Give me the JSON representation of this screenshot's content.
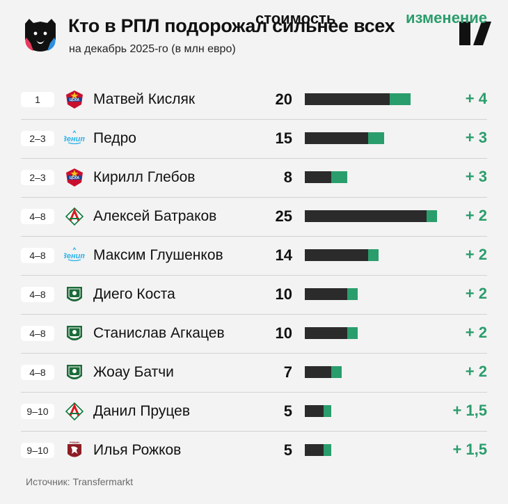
{
  "header": {
    "title": "Кто в РПЛ подорожал сильнее всех",
    "subtitle": "на декабрь 2025-го (в млн евро)"
  },
  "columns": {
    "value_label": "стоимость",
    "change_label": "изменение"
  },
  "footer": {
    "source": "Источник: Transfermarkt"
  },
  "colors": {
    "accent_green": "#2a9d6c",
    "bar_dark": "#2b2b2b",
    "background": "#f3f3f3",
    "cska_red": "#c8102e",
    "cska_blue": "#1f3f8f",
    "zenit_blue": "#2db3e8",
    "lokomotiv_red": "#d71920",
    "lokomotiv_green": "#0a7a3b",
    "krasnodar_green": "#1d6b3a",
    "rubin_maroon": "#8c1d24"
  },
  "chart_data": {
    "type": "bar",
    "title": "Кто в РПЛ подорожал сильнее всех",
    "subtitle": "на декабрь 2025-го (в млн евро)",
    "xlim": [
      0,
      25
    ],
    "series": [
      {
        "name": "стоимость",
        "values": [
          20,
          15,
          8,
          25,
          14,
          10,
          10,
          7,
          5,
          5
        ]
      },
      {
        "name": "изменение",
        "values": [
          4,
          3,
          3,
          2,
          2,
          2,
          2,
          2,
          1.5,
          1.5
        ]
      }
    ],
    "rows": [
      {
        "rank": "1",
        "club_icon": "cska-icon",
        "player": "Матвей Кисляк",
        "value": 20,
        "value_label": "20",
        "change": 4,
        "change_label": "+ 4"
      },
      {
        "rank": "2–3",
        "club_icon": "zenit-icon",
        "player": "Педро",
        "value": 15,
        "value_label": "15",
        "change": 3,
        "change_label": "+ 3"
      },
      {
        "rank": "2–3",
        "club_icon": "cska-icon",
        "player": "Кирилл Глебов",
        "value": 8,
        "value_label": "8",
        "change": 3,
        "change_label": "+ 3"
      },
      {
        "rank": "4–8",
        "club_icon": "lokomotiv-icon",
        "player": "Алексей Батраков",
        "value": 25,
        "value_label": "25",
        "change": 2,
        "change_label": "+ 2"
      },
      {
        "rank": "4–8",
        "club_icon": "zenit-icon",
        "player": "Максим Глушенков",
        "value": 14,
        "value_label": "14",
        "change": 2,
        "change_label": "+ 2"
      },
      {
        "rank": "4–8",
        "club_icon": "krasnodar-icon",
        "player": "Диего Коста",
        "value": 10,
        "value_label": "10",
        "change": 2,
        "change_label": "+ 2"
      },
      {
        "rank": "4–8",
        "club_icon": "krasnodar-icon",
        "player": "Станислав Агкацев",
        "value": 10,
        "value_label": "10",
        "change": 2,
        "change_label": "+ 2"
      },
      {
        "rank": "4–8",
        "club_icon": "krasnodar-icon",
        "player": "Жоау Батчи",
        "value": 7,
        "value_label": "7",
        "change": 2,
        "change_label": "+ 2"
      },
      {
        "rank": "9–10",
        "club_icon": "lokomotiv-icon",
        "player": "Данил Пруцев",
        "value": 5,
        "value_label": "5",
        "change": 1.5,
        "change_label": "+ 1,5"
      },
      {
        "rank": "9–10",
        "club_icon": "rubin-icon",
        "player": "Илья Рожков",
        "value": 5,
        "value_label": "5",
        "change": 1.5,
        "change_label": "+ 1,5"
      }
    ]
  }
}
